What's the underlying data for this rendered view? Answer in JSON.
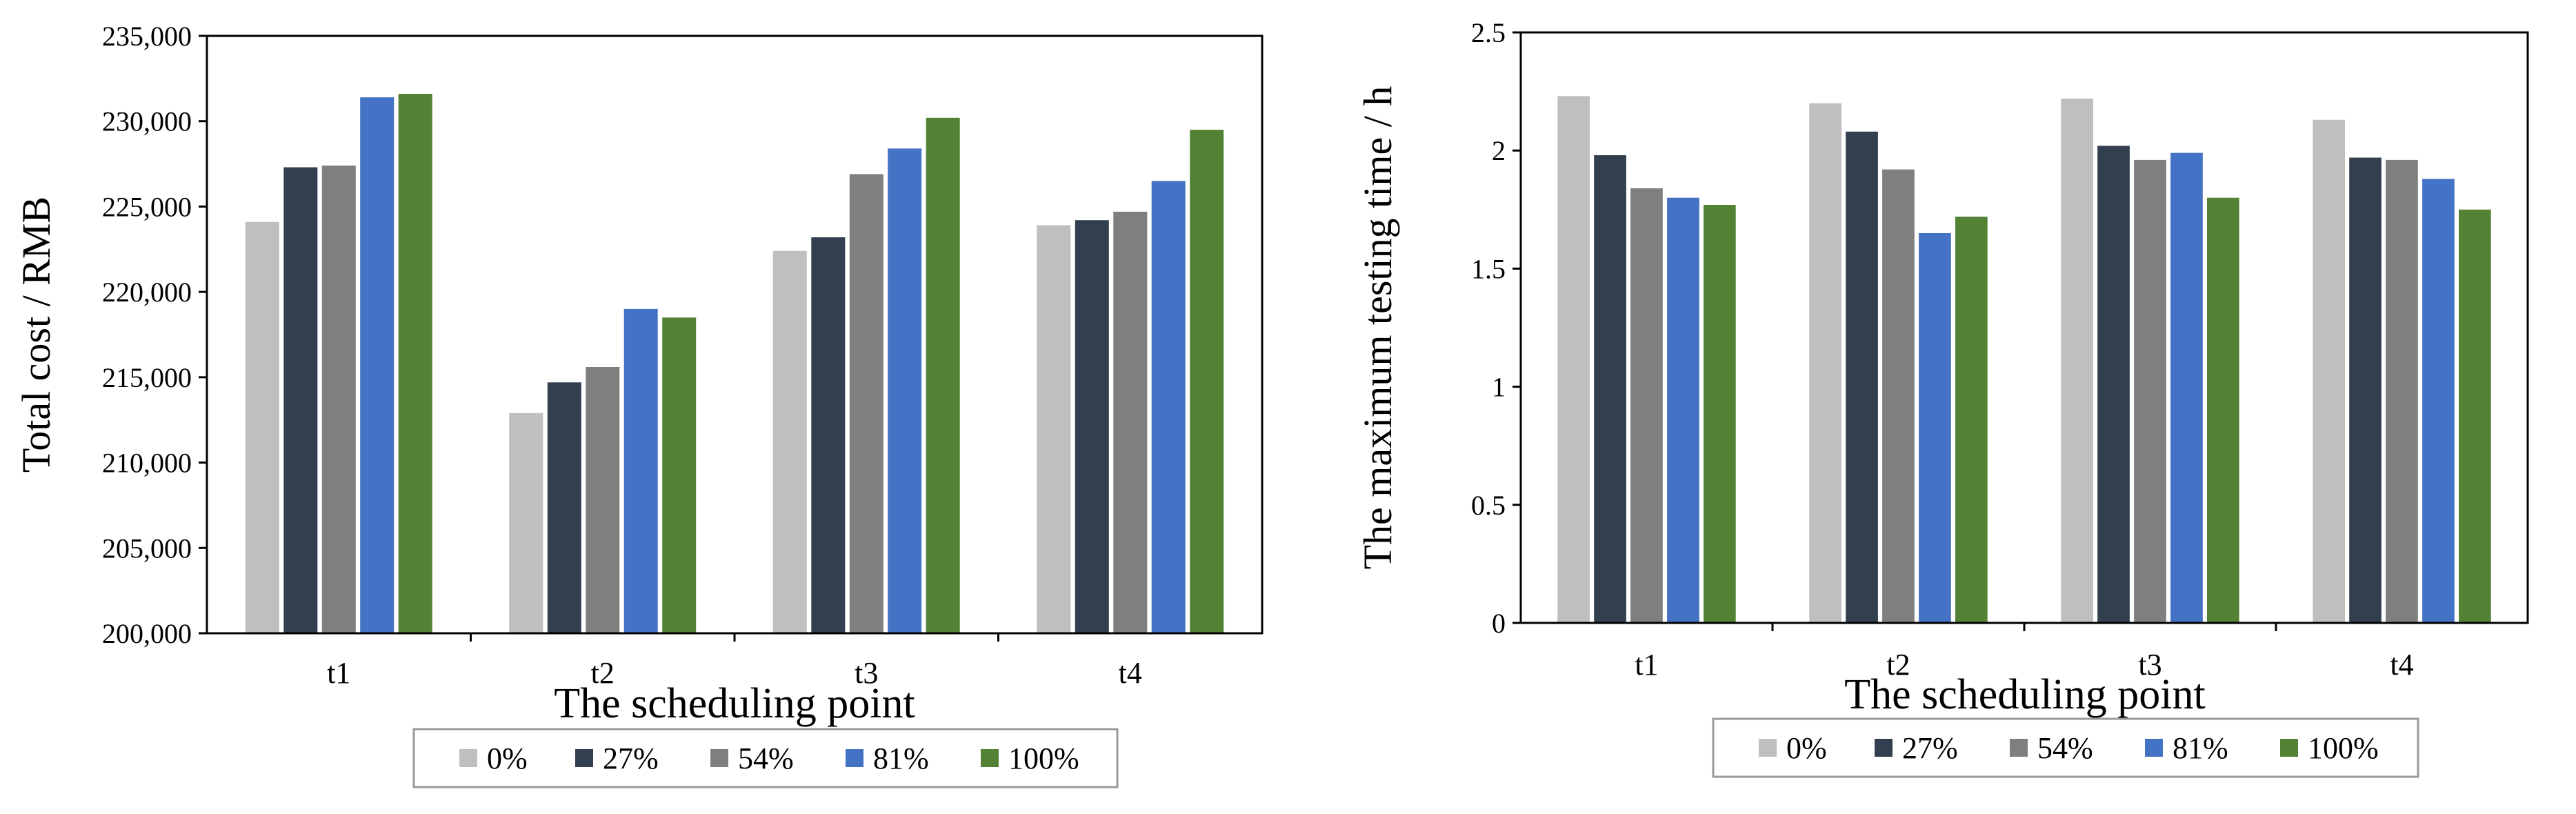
{
  "chart_data": [
    {
      "type": "bar",
      "title": "",
      "xlabel": "The scheduling point",
      "ylabel": "Total cost / RMB",
      "categories": [
        "t1",
        "t2",
        "t3",
        "t4"
      ],
      "ylim": [
        200000,
        235000
      ],
      "yticks": [
        200000,
        205000,
        210000,
        215000,
        220000,
        225000,
        230000,
        235000
      ],
      "ytick_labels": [
        "200,000",
        "205,000",
        "210,000",
        "215,000",
        "220,000",
        "225,000",
        "230,000",
        "235,000"
      ],
      "grid": false,
      "legend_position": "bottom",
      "series": [
        {
          "name": "0%",
          "color": "#bfbfbf",
          "values": [
            224100,
            212900,
            222400,
            223900
          ]
        },
        {
          "name": "27%",
          "color": "#323f4f",
          "values": [
            227300,
            214700,
            223200,
            224200
          ]
        },
        {
          "name": "54%",
          "color": "#7f7f7f",
          "values": [
            227400,
            215600,
            226900,
            224700
          ]
        },
        {
          "name": "81%",
          "color": "#4472c4",
          "values": [
            231400,
            219000,
            228400,
            226500
          ]
        },
        {
          "name": "100%",
          "color": "#548235",
          "values": [
            231600,
            218500,
            230200,
            229500
          ]
        }
      ]
    },
    {
      "type": "bar",
      "title": "",
      "xlabel": "The scheduling point",
      "ylabel": "The maximum testing time / h",
      "categories": [
        "t1",
        "t2",
        "t3",
        "t4"
      ],
      "ylim": [
        0,
        2.5
      ],
      "yticks": [
        0,
        0.5,
        1,
        1.5,
        2,
        2.5
      ],
      "ytick_labels": [
        "0",
        "0.5",
        "1",
        "1.5",
        "2",
        "2.5"
      ],
      "grid": false,
      "legend_position": "bottom",
      "series": [
        {
          "name": "0%",
          "color": "#bfbfbf",
          "values": [
            2.23,
            2.2,
            2.22,
            2.13
          ]
        },
        {
          "name": "27%",
          "color": "#323f4f",
          "values": [
            1.98,
            2.08,
            2.02,
            1.97
          ]
        },
        {
          "name": "54%",
          "color": "#7f7f7f",
          "values": [
            1.84,
            1.92,
            1.96,
            1.96
          ]
        },
        {
          "name": "81%",
          "color": "#4472c4",
          "values": [
            1.8,
            1.65,
            1.99,
            1.88
          ]
        },
        {
          "name": "100%",
          "color": "#548235",
          "values": [
            1.77,
            1.72,
            1.8,
            1.75
          ]
        }
      ]
    }
  ]
}
